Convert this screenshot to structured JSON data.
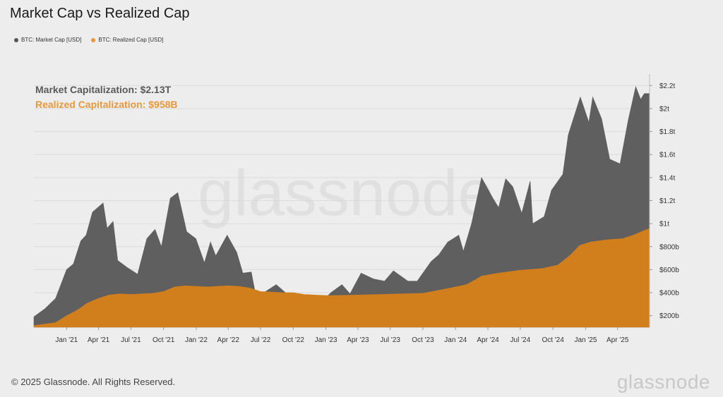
{
  "header": {
    "title": "Market Cap vs Realized Cap"
  },
  "legend": [
    {
      "label": "BTC: Market Cap [USD]",
      "color": "#555555"
    },
    {
      "label": "BTC: Realized Cap [USD]",
      "color": "#e8973a"
    }
  ],
  "annotations": {
    "market": "Market Capitalization: $2.13T",
    "realized": "Realized Capitalization: $958B"
  },
  "watermark": "glassnode",
  "footer": {
    "copyright": "© 2025 Glassnode. All Rights Reserved.",
    "brand": "glassnode"
  },
  "chart_data": {
    "type": "area",
    "title": "Market Cap vs Realized Cap",
    "xlabel": "",
    "ylabel": "",
    "x_range": [
      "2020-10-01",
      "2025-06-30"
    ],
    "ylim": [
      100,
      2300
    ],
    "y_unit": "billions USD",
    "y_ticks": [
      {
        "value": 200,
        "label": "$200b"
      },
      {
        "value": 400,
        "label": "$400b"
      },
      {
        "value": 600,
        "label": "$600b"
      },
      {
        "value": 800,
        "label": "$800b"
      },
      {
        "value": 1000,
        "label": "$1t"
      },
      {
        "value": 1200,
        "label": "$1.2t"
      },
      {
        "value": 1400,
        "label": "$1.4t"
      },
      {
        "value": 1600,
        "label": "$1.6t"
      },
      {
        "value": 1800,
        "label": "$1.8t"
      },
      {
        "value": 2000,
        "label": "$2t"
      },
      {
        "value": 2200,
        "label": "$2.2t"
      }
    ],
    "x_ticks": [
      {
        "date": "2021-01-01",
        "label": "Jan '21"
      },
      {
        "date": "2021-04-01",
        "label": "Apr '21"
      },
      {
        "date": "2021-07-01",
        "label": "Jul '21"
      },
      {
        "date": "2021-10-01",
        "label": "Oct '21"
      },
      {
        "date": "2022-01-01",
        "label": "Jan '22"
      },
      {
        "date": "2022-04-01",
        "label": "Apr '22"
      },
      {
        "date": "2022-07-01",
        "label": "Jul '22"
      },
      {
        "date": "2022-10-01",
        "label": "Oct '22"
      },
      {
        "date": "2023-01-01",
        "label": "Jan '23"
      },
      {
        "date": "2023-04-01",
        "label": "Apr '23"
      },
      {
        "date": "2023-07-01",
        "label": "Jul '23"
      },
      {
        "date": "2023-10-01",
        "label": "Oct '23"
      },
      {
        "date": "2024-01-01",
        "label": "Jan '24"
      },
      {
        "date": "2024-04-01",
        "label": "Apr '24"
      },
      {
        "date": "2024-07-01",
        "label": "Jul '24"
      },
      {
        "date": "2024-10-01",
        "label": "Oct '24"
      },
      {
        "date": "2025-01-01",
        "label": "Jan '25"
      },
      {
        "date": "2025-04-01",
        "label": "Apr '25"
      }
    ],
    "grid": true,
    "legend_position": "top-left",
    "series": [
      {
        "name": "BTC: Market Cap [USD]",
        "color": "#5f5f5f",
        "points": [
          [
            "2020-10-01",
            190
          ],
          [
            "2020-11-01",
            260
          ],
          [
            "2020-12-01",
            350
          ],
          [
            "2021-01-01",
            600
          ],
          [
            "2021-01-20",
            650
          ],
          [
            "2021-02-10",
            850
          ],
          [
            "2021-02-25",
            900
          ],
          [
            "2021-03-15",
            1100
          ],
          [
            "2021-04-14",
            1180
          ],
          [
            "2021-04-25",
            960
          ],
          [
            "2021-05-12",
            1020
          ],
          [
            "2021-05-25",
            680
          ],
          [
            "2021-06-20",
            620
          ],
          [
            "2021-07-20",
            560
          ],
          [
            "2021-08-15",
            870
          ],
          [
            "2021-09-07",
            950
          ],
          [
            "2021-09-25",
            800
          ],
          [
            "2021-10-20",
            1220
          ],
          [
            "2021-11-10",
            1270
          ],
          [
            "2021-12-05",
            930
          ],
          [
            "2021-12-31",
            870
          ],
          [
            "2022-01-24",
            660
          ],
          [
            "2022-02-10",
            840
          ],
          [
            "2022-02-25",
            720
          ],
          [
            "2022-03-29",
            900
          ],
          [
            "2022-04-25",
            750
          ],
          [
            "2022-05-12",
            570
          ],
          [
            "2022-06-05",
            580
          ],
          [
            "2022-06-19",
            350
          ],
          [
            "2022-07-10",
            400
          ],
          [
            "2022-08-14",
            470
          ],
          [
            "2022-09-20",
            370
          ],
          [
            "2022-10-15",
            370
          ],
          [
            "2022-11-09",
            320
          ],
          [
            "2022-12-20",
            320
          ],
          [
            "2023-01-15",
            400
          ],
          [
            "2023-02-15",
            470
          ],
          [
            "2023-03-10",
            390
          ],
          [
            "2023-04-10",
            570
          ],
          [
            "2023-05-15",
            520
          ],
          [
            "2023-06-15",
            500
          ],
          [
            "2023-07-10",
            590
          ],
          [
            "2023-08-20",
            500
          ],
          [
            "2023-09-15",
            500
          ],
          [
            "2023-10-24",
            670
          ],
          [
            "2023-11-15",
            730
          ],
          [
            "2023-12-10",
            840
          ],
          [
            "2024-01-10",
            900
          ],
          [
            "2024-01-23",
            760
          ],
          [
            "2024-02-15",
            1000
          ],
          [
            "2024-03-14",
            1400
          ],
          [
            "2024-04-15",
            1220
          ],
          [
            "2024-05-01",
            1140
          ],
          [
            "2024-05-21",
            1390
          ],
          [
            "2024-06-10",
            1320
          ],
          [
            "2024-07-05",
            1090
          ],
          [
            "2024-07-29",
            1370
          ],
          [
            "2024-08-05",
            1000
          ],
          [
            "2024-09-06",
            1060
          ],
          [
            "2024-09-27",
            1290
          ],
          [
            "2024-10-29",
            1430
          ],
          [
            "2024-11-13",
            1770
          ],
          [
            "2024-12-17",
            2100
          ],
          [
            "2025-01-10",
            1880
          ],
          [
            "2025-01-21",
            2100
          ],
          [
            "2025-02-15",
            1910
          ],
          [
            "2025-03-10",
            1560
          ],
          [
            "2025-04-08",
            1520
          ],
          [
            "2025-05-01",
            1900
          ],
          [
            "2025-05-22",
            2190
          ],
          [
            "2025-06-05",
            2080
          ],
          [
            "2025-06-15",
            2130
          ],
          [
            "2025-06-30",
            2130
          ]
        ]
      },
      {
        "name": "BTC: Realized Cap [USD]",
        "color": "#d17f1c",
        "points": [
          [
            "2020-10-01",
            115
          ],
          [
            "2020-12-01",
            140
          ],
          [
            "2021-01-01",
            200
          ],
          [
            "2021-02-01",
            250
          ],
          [
            "2021-03-01",
            310
          ],
          [
            "2021-04-01",
            350
          ],
          [
            "2021-05-01",
            380
          ],
          [
            "2021-06-01",
            390
          ],
          [
            "2021-07-01",
            385
          ],
          [
            "2021-08-01",
            390
          ],
          [
            "2021-09-01",
            395
          ],
          [
            "2021-10-01",
            410
          ],
          [
            "2021-11-01",
            450
          ],
          [
            "2021-12-01",
            460
          ],
          [
            "2022-01-01",
            455
          ],
          [
            "2022-02-01",
            450
          ],
          [
            "2022-03-01",
            455
          ],
          [
            "2022-04-01",
            460
          ],
          [
            "2022-05-01",
            455
          ],
          [
            "2022-06-01",
            440
          ],
          [
            "2022-07-01",
            410
          ],
          [
            "2022-08-01",
            405
          ],
          [
            "2022-09-01",
            400
          ],
          [
            "2022-10-01",
            400
          ],
          [
            "2022-11-01",
            385
          ],
          [
            "2022-12-01",
            380
          ],
          [
            "2023-01-01",
            375
          ],
          [
            "2023-02-01",
            375
          ],
          [
            "2023-04-01",
            380
          ],
          [
            "2023-06-01",
            385
          ],
          [
            "2023-08-01",
            390
          ],
          [
            "2023-10-01",
            395
          ],
          [
            "2023-12-01",
            430
          ],
          [
            "2024-02-01",
            470
          ],
          [
            "2024-03-15",
            545
          ],
          [
            "2024-05-01",
            570
          ],
          [
            "2024-07-01",
            595
          ],
          [
            "2024-09-01",
            610
          ],
          [
            "2024-10-15",
            640
          ],
          [
            "2024-11-20",
            730
          ],
          [
            "2024-12-15",
            810
          ],
          [
            "2025-01-15",
            840
          ],
          [
            "2025-03-01",
            860
          ],
          [
            "2025-04-15",
            870
          ],
          [
            "2025-05-15",
            900
          ],
          [
            "2025-06-15",
            940
          ],
          [
            "2025-06-30",
            958
          ]
        ]
      }
    ]
  }
}
